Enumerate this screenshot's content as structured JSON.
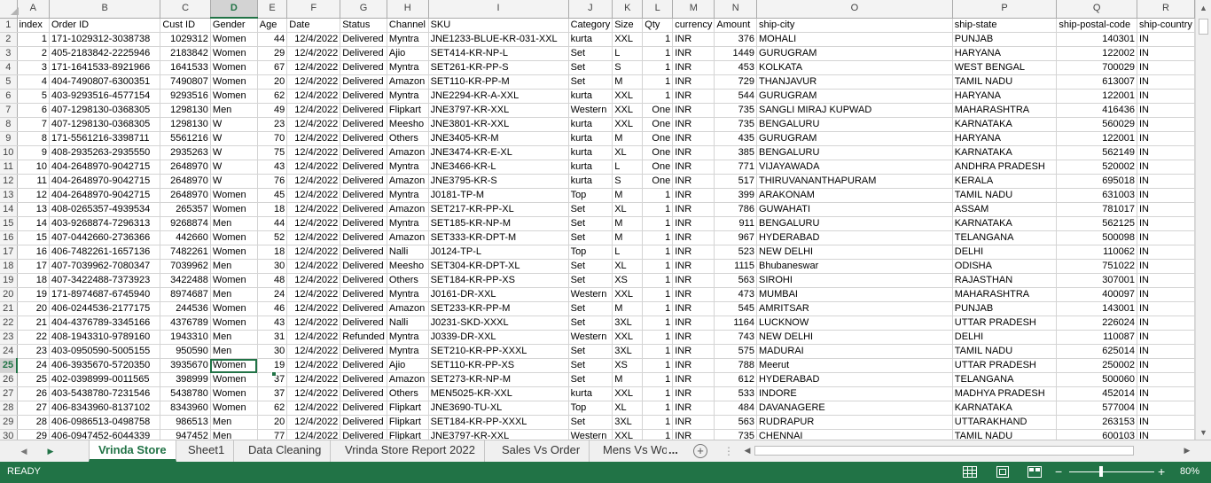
{
  "columns": [
    "A",
    "B",
    "C",
    "D",
    "E",
    "F",
    "G",
    "H",
    "I",
    "J",
    "K",
    "L",
    "M",
    "N",
    "O",
    "P",
    "Q",
    "R"
  ],
  "header_row": [
    "index",
    "Order ID",
    "Cust ID",
    "Gender",
    "Age",
    "Date",
    "Status",
    "Channel",
    "SKU",
    "Category",
    "Size",
    "Qty",
    "currency",
    "Amount",
    "ship-city",
    "ship-state",
    "ship-postal-code",
    "ship-country"
  ],
  "row_numbers": [
    "1",
    "2",
    "3",
    "4",
    "5",
    "6",
    "7",
    "8",
    "9",
    "10",
    "11",
    "12",
    "13",
    "14",
    "15",
    "16",
    "17",
    "18",
    "19",
    "20",
    "21",
    "22",
    "23",
    "24",
    "25",
    "26",
    "27",
    "28",
    "29",
    "30"
  ],
  "rows": [
    [
      "1",
      "171-1029312-3038738",
      "1029312",
      "Women",
      "44",
      "12/4/2022",
      "Delivered",
      "Myntra",
      "JNE1233-BLUE-KR-031-XXL",
      "kurta",
      "XXL",
      "1",
      "INR",
      "376",
      "MOHALI",
      "PUNJAB",
      "140301",
      "IN"
    ],
    [
      "2",
      "405-2183842-2225946",
      "2183842",
      "Women",
      "29",
      "12/4/2022",
      "Delivered",
      "Ajio",
      "SET414-KR-NP-L",
      "Set",
      "L",
      "1",
      "INR",
      "1449",
      "GURUGRAM",
      "HARYANA",
      "122002",
      "IN"
    ],
    [
      "3",
      "171-1641533-8921966",
      "1641533",
      "Women",
      "67",
      "12/4/2022",
      "Delivered",
      "Myntra",
      "SET261-KR-PP-S",
      "Set",
      "S",
      "1",
      "INR",
      "453",
      "KOLKATA",
      "WEST BENGAL",
      "700029",
      "IN"
    ],
    [
      "4",
      "404-7490807-6300351",
      "7490807",
      "Women",
      "20",
      "12/4/2022",
      "Delivered",
      "Amazon",
      "SET110-KR-PP-M",
      "Set",
      "M",
      "1",
      "INR",
      "729",
      "THANJAVUR",
      "TAMIL NADU",
      "613007",
      "IN"
    ],
    [
      "5",
      "403-9293516-4577154",
      "9293516",
      "Women",
      "62",
      "12/4/2022",
      "Delivered",
      "Myntra",
      "JNE2294-KR-A-XXL",
      "kurta",
      "XXL",
      "1",
      "INR",
      "544",
      "GURUGRAM",
      "HARYANA",
      "122001",
      "IN"
    ],
    [
      "6",
      "407-1298130-0368305",
      "1298130",
      "Men",
      "49",
      "12/4/2022",
      "Delivered",
      "Flipkart",
      "JNE3797-KR-XXL",
      "Western",
      "XXL",
      "One",
      "INR",
      "735",
      "SANGLI MIRAJ KUPWAD",
      "MAHARASHTRA",
      "416436",
      "IN"
    ],
    [
      "7",
      "407-1298130-0368305",
      "1298130",
      "W",
      "23",
      "12/4/2022",
      "Delivered",
      "Meesho",
      "JNE3801-KR-XXL",
      "kurta",
      "XXL",
      "One",
      "INR",
      "735",
      "BENGALURU",
      "KARNATAKA",
      "560029",
      "IN"
    ],
    [
      "8",
      "171-5561216-3398711",
      "5561216",
      "W",
      "70",
      "12/4/2022",
      "Delivered",
      "Others",
      "JNE3405-KR-M",
      "kurta",
      "M",
      "One",
      "INR",
      "435",
      "GURUGRAM",
      "HARYANA",
      "122001",
      "IN"
    ],
    [
      "9",
      "408-2935263-2935550",
      "2935263",
      "W",
      "75",
      "12/4/2022",
      "Delivered",
      "Amazon",
      "JNE3474-KR-E-XL",
      "kurta",
      "XL",
      "One",
      "INR",
      "385",
      "BENGALURU",
      "KARNATAKA",
      "562149",
      "IN"
    ],
    [
      "10",
      "404-2648970-9042715",
      "2648970",
      "W",
      "43",
      "12/4/2022",
      "Delivered",
      "Myntra",
      "JNE3466-KR-L",
      "kurta",
      "L",
      "One",
      "INR",
      "771",
      "VIJAYAWADA",
      "ANDHRA PRADESH",
      "520002",
      "IN"
    ],
    [
      "11",
      "404-2648970-9042715",
      "2648970",
      "W",
      "76",
      "12/4/2022",
      "Delivered",
      "Amazon",
      "JNE3795-KR-S",
      "kurta",
      "S",
      "One",
      "INR",
      "517",
      "THIRUVANANTHAPURAM",
      "KERALA",
      "695018",
      "IN"
    ],
    [
      "12",
      "404-2648970-9042715",
      "2648970",
      "Women",
      "45",
      "12/4/2022",
      "Delivered",
      "Myntra",
      "J0181-TP-M",
      "Top",
      "M",
      "1",
      "INR",
      "399",
      "ARAKONAM",
      "TAMIL NADU",
      "631003",
      "IN"
    ],
    [
      "13",
      "408-0265357-4939534",
      "265357",
      "Women",
      "18",
      "12/4/2022",
      "Delivered",
      "Amazon",
      "SET217-KR-PP-XL",
      "Set",
      "XL",
      "1",
      "INR",
      "786",
      "GUWAHATI",
      "ASSAM",
      "781017",
      "IN"
    ],
    [
      "14",
      "403-9268874-7296313",
      "9268874",
      "Men",
      "44",
      "12/4/2022",
      "Delivered",
      "Myntra",
      "SET185-KR-NP-M",
      "Set",
      "M",
      "1",
      "INR",
      "911",
      "BENGALURU",
      "KARNATAKA",
      "562125",
      "IN"
    ],
    [
      "15",
      "407-0442660-2736366",
      "442660",
      "Women",
      "52",
      "12/4/2022",
      "Delivered",
      "Amazon",
      "SET333-KR-DPT-M",
      "Set",
      "M",
      "1",
      "INR",
      "967",
      "HYDERABAD",
      "TELANGANA",
      "500098",
      "IN"
    ],
    [
      "16",
      "406-7482261-1657136",
      "7482261",
      "Women",
      "18",
      "12/4/2022",
      "Delivered",
      "Nalli",
      "J0124-TP-L",
      "Top",
      "L",
      "1",
      "INR",
      "523",
      "NEW DELHI",
      "DELHI",
      "110062",
      "IN"
    ],
    [
      "17",
      "407-7039962-7080347",
      "7039962",
      "Men",
      "30",
      "12/4/2022",
      "Delivered",
      "Meesho",
      "SET304-KR-DPT-XL",
      "Set",
      "XL",
      "1",
      "INR",
      "1115",
      "Bhubaneswar",
      "ODISHA",
      "751022",
      "IN"
    ],
    [
      "18",
      "407-3422488-7373923",
      "3422488",
      "Women",
      "48",
      "12/4/2022",
      "Delivered",
      "Others",
      "SET184-KR-PP-XS",
      "Set",
      "XS",
      "1",
      "INR",
      "563",
      "SIROHI",
      "RAJASTHAN",
      "307001",
      "IN"
    ],
    [
      "19",
      "171-8974687-6745940",
      "8974687",
      "Men",
      "24",
      "12/4/2022",
      "Delivered",
      "Myntra",
      "J0161-DR-XXL",
      "Western",
      "XXL",
      "1",
      "INR",
      "473",
      "MUMBAI",
      "MAHARASHTRA",
      "400097",
      "IN"
    ],
    [
      "20",
      "406-0244536-2177175",
      "244536",
      "Women",
      "46",
      "12/4/2022",
      "Delivered",
      "Amazon",
      "SET233-KR-PP-M",
      "Set",
      "M",
      "1",
      "INR",
      "545",
      "AMRITSAR",
      "PUNJAB",
      "143001",
      "IN"
    ],
    [
      "21",
      "404-4376789-3345166",
      "4376789",
      "Women",
      "43",
      "12/4/2022",
      "Delivered",
      "Nalli",
      "J0231-SKD-XXXL",
      "Set",
      "3XL",
      "1",
      "INR",
      "1164",
      "LUCKNOW",
      "UTTAR PRADESH",
      "226024",
      "IN"
    ],
    [
      "22",
      "408-1943310-9789160",
      "1943310",
      "Men",
      "31",
      "12/4/2022",
      "Refunded",
      "Myntra",
      "J0339-DR-XXL",
      "Western",
      "XXL",
      "1",
      "INR",
      "743",
      "NEW DELHI",
      "DELHI",
      "110087",
      "IN"
    ],
    [
      "23",
      "403-0950590-5005155",
      "950590",
      "Men",
      "30",
      "12/4/2022",
      "Delivered",
      "Myntra",
      "SET210-KR-PP-XXXL",
      "Set",
      "3XL",
      "1",
      "INR",
      "575",
      "MADURAI",
      "TAMIL NADU",
      "625014",
      "IN"
    ],
    [
      "24",
      "406-3935670-5720350",
      "3935670",
      "Women",
      "19",
      "12/4/2022",
      "Delivered",
      "Ajio",
      "SET110-KR-PP-XS",
      "Set",
      "XS",
      "1",
      "INR",
      "788",
      "Meerut",
      "UTTAR PRADESH",
      "250002",
      "IN"
    ],
    [
      "25",
      "402-0398999-0011565",
      "398999",
      "Women",
      "37",
      "12/4/2022",
      "Delivered",
      "Amazon",
      "SET273-KR-NP-M",
      "Set",
      "M",
      "1",
      "INR",
      "612",
      "HYDERABAD",
      "TELANGANA",
      "500060",
      "IN"
    ],
    [
      "26",
      "403-5438780-7231546",
      "5438780",
      "Women",
      "37",
      "12/4/2022",
      "Delivered",
      "Others",
      "MEN5025-KR-XXL",
      "kurta",
      "XXL",
      "1",
      "INR",
      "533",
      "INDORE",
      "MADHYA PRADESH",
      "452014",
      "IN"
    ],
    [
      "27",
      "406-8343960-8137102",
      "8343960",
      "Women",
      "62",
      "12/4/2022",
      "Delivered",
      "Flipkart",
      "JNE3690-TU-XL",
      "Top",
      "XL",
      "1",
      "INR",
      "484",
      "DAVANAGERE",
      "KARNATAKA",
      "577004",
      "IN"
    ],
    [
      "28",
      "406-0986513-0498758",
      "986513",
      "Men",
      "20",
      "12/4/2022",
      "Delivered",
      "Flipkart",
      "SET184-KR-PP-XXXL",
      "Set",
      "3XL",
      "1",
      "INR",
      "563",
      "RUDRAPUR",
      "UTTARAKHAND",
      "263153",
      "IN"
    ],
    [
      "29",
      "406-0947452-6044339",
      "947452",
      "Men",
      "77",
      "12/4/2022",
      "Delivered",
      "Flipkart",
      "JNE3797-KR-XXL",
      "Western",
      "XXL",
      "1",
      "INR",
      "735",
      "CHENNAI",
      "TAMIL NADU",
      "600103",
      "IN"
    ]
  ],
  "selection": {
    "column": "D",
    "row": "25"
  },
  "sheet_tabs": [
    "Vrinda Store",
    "Sheet1",
    "Data Cleaning",
    "Vrinda Store Report 2022",
    "Sales Vs Order",
    "Mens Vs Wo"
  ],
  "overflow_marker": "...",
  "statusbar": {
    "mode": "READY",
    "zoom": "80%"
  },
  "colors": {
    "accent": "#217346",
    "header_bg": "#f3f3f3",
    "gridline": "#d4d4d4"
  },
  "icons": [
    "first-sheet-icon",
    "prev-sheet-icon",
    "add-sheet-icon",
    "normal-view-icon",
    "page-layout-icon",
    "page-break-icon"
  ]
}
